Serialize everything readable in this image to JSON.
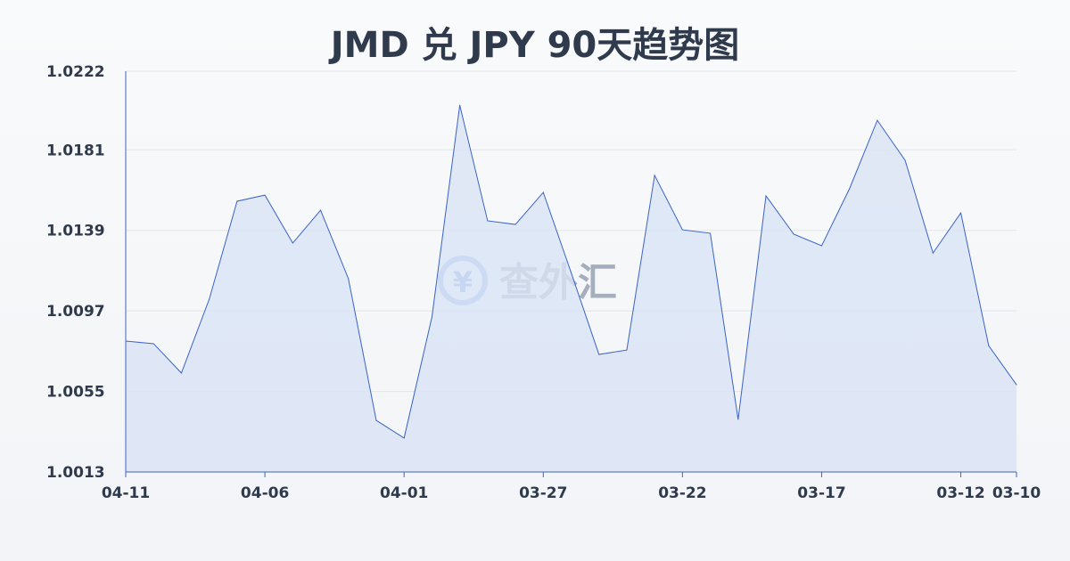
{
  "chart_data": {
    "type": "area",
    "title": "JMD 兑 JPY 90天趋势图",
    "xlabel": "",
    "ylabel": "",
    "ylim": [
      1.0013,
      1.0222
    ],
    "y_ticks": [
      "1.0222",
      "1.0181",
      "1.0139",
      "1.0097",
      "1.0055",
      "1.0013"
    ],
    "x_ticks": [
      "04-11",
      "04-06",
      "04-01",
      "03-27",
      "03-22",
      "03-17",
      "03-12",
      "03-10"
    ],
    "grid": true,
    "colors": {
      "line": "#3a63c8",
      "fill": "#dae3f5"
    },
    "x": [
      "04-11",
      "04-10",
      "04-09",
      "04-08",
      "04-07",
      "04-06",
      "04-05",
      "04-04",
      "04-03",
      "04-02",
      "04-01",
      "03-31",
      "03-30",
      "03-29",
      "03-28",
      "03-27",
      "03-26",
      "03-25",
      "03-24",
      "03-23",
      "03-22",
      "03-21",
      "03-20",
      "03-19",
      "03-18",
      "03-17",
      "03-16",
      "03-15",
      "03-14",
      "03-13",
      "03-12",
      "03-11",
      "03-10"
    ],
    "values": [
      1.00813,
      1.00799,
      1.00646,
      1.01031,
      1.01542,
      1.01574,
      1.01324,
      1.01495,
      1.01138,
      1.00399,
      1.00307,
      1.00938,
      1.02043,
      1.0144,
      1.01421,
      1.01588,
      1.0117,
      1.00743,
      1.00766,
      1.01677,
      1.01393,
      1.01375,
      1.00404,
      1.0157,
      1.0137,
      1.0131,
      1.01607,
      1.01964,
      1.01755,
      1.01272,
      1.01481,
      1.00789,
      1.00585
    ]
  },
  "watermark": {
    "text": "查外汇",
    "icon": "yen-exchange-icon"
  }
}
